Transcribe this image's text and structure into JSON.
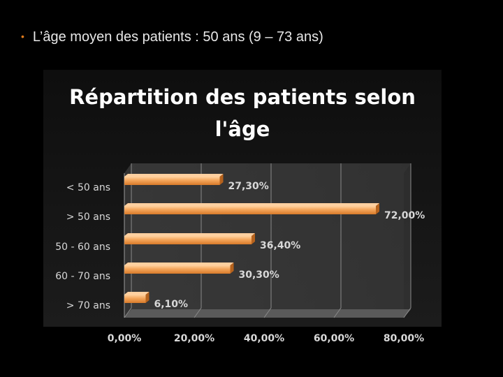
{
  "bullet": {
    "symbol": "•",
    "text": "L’âge moyen des patients : 50 ans (9 – 73 ans)"
  },
  "chart_data": {
    "type": "bar",
    "orientation": "horizontal",
    "title": "Répartition des patients selon l'âge",
    "categories": [
      "< 50 ans",
      "> 50 ans",
      "50 - 60 ans",
      "60 - 70 ans",
      "> 70 ans"
    ],
    "values": [
      27.3,
      72.0,
      36.4,
      30.3,
      6.1
    ],
    "value_labels": [
      "27,30%",
      "72,00%",
      "36,40%",
      "30,30%",
      "6,10%"
    ],
    "xlim": [
      0,
      80
    ],
    "x_ticks": [
      "0,00%",
      "20,00%",
      "40,00%",
      "60,00%",
      "80,00%"
    ],
    "grid": true,
    "bar_color": "#f0a050",
    "bullet_color": "#e07b1c",
    "plot_background": "#3a3a3a"
  }
}
